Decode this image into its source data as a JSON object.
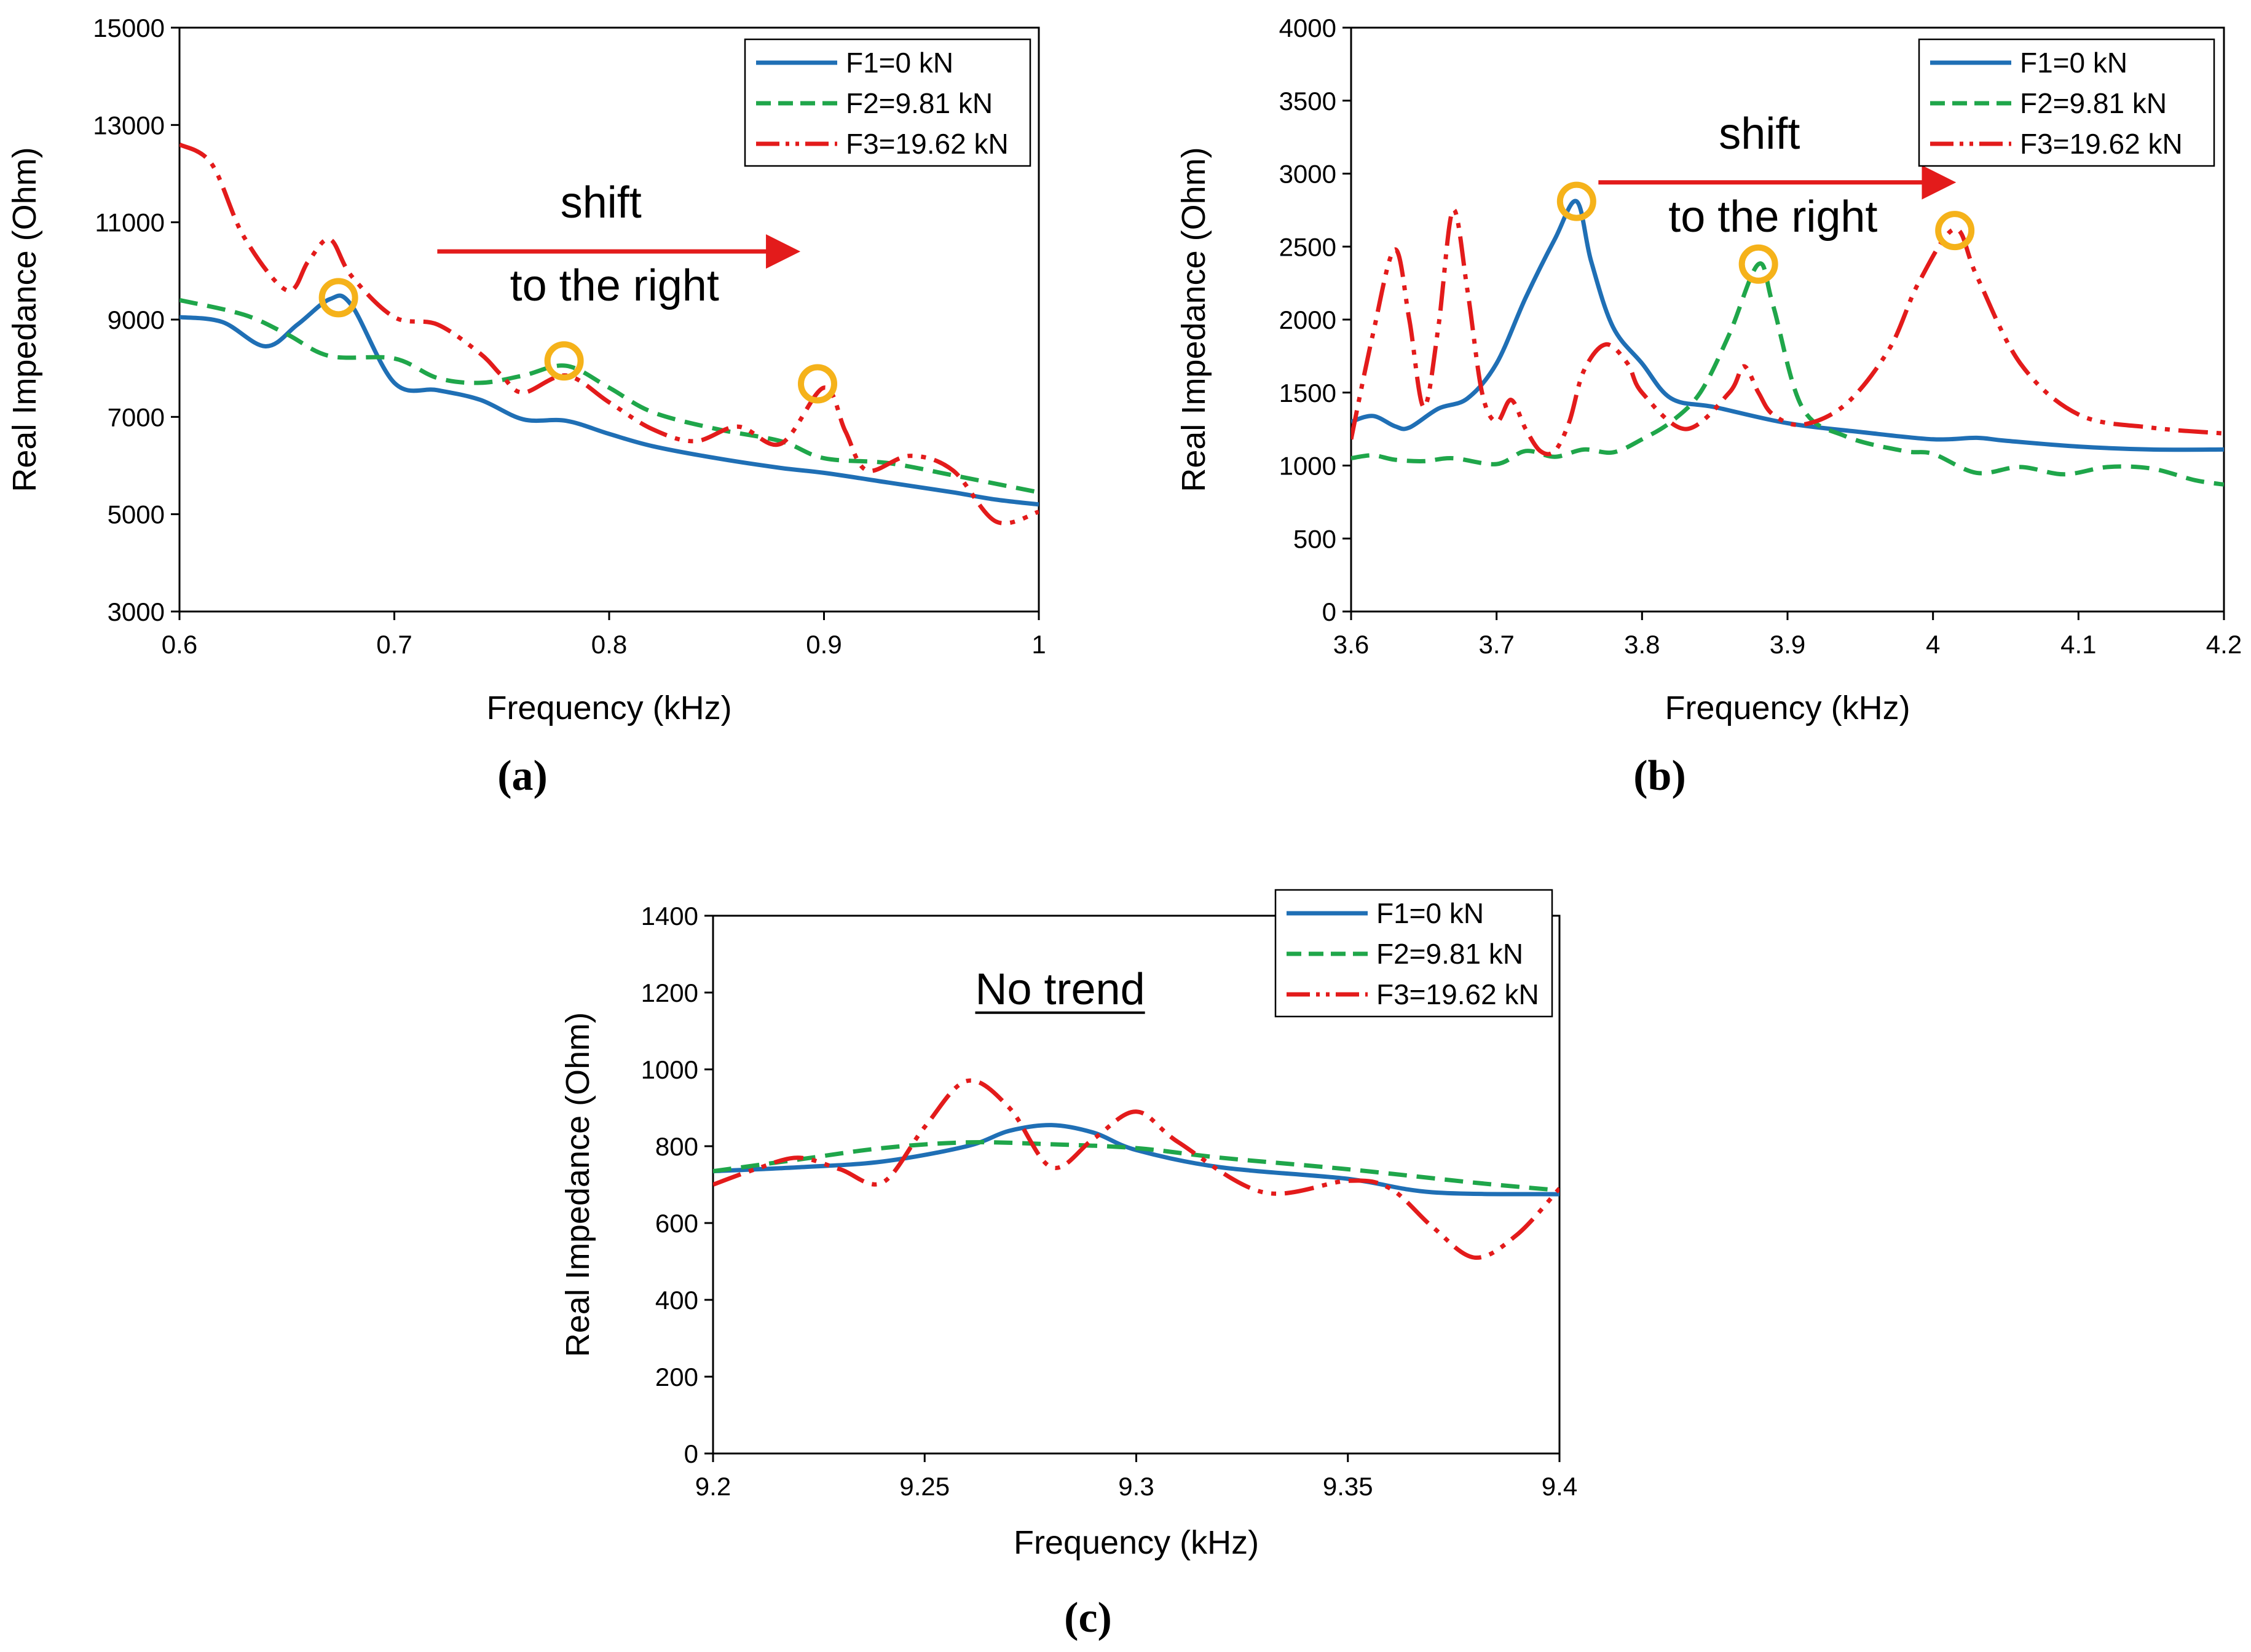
{
  "figure": {
    "colors": {
      "F1": "#1f6fb5",
      "F2": "#1fa64a",
      "F3": "#e31b1b",
      "marker": "#f5b21a",
      "arrow": "#e31b1b"
    }
  },
  "chart_data": [
    {
      "type": "line",
      "panel_label": "(a)",
      "xlabel": "Frequency (kHz)",
      "ylabel": "Real Impedance (Ohm)",
      "xlim": [
        0.6,
        1.0
      ],
      "ylim": [
        3000,
        15000
      ],
      "xticks": [
        0.6,
        0.7,
        0.8,
        0.9,
        1.0
      ],
      "xtick_labels": [
        "0.6",
        "0.7",
        "0.8",
        "0.9",
        "1"
      ],
      "yticks": [
        3000,
        5000,
        7000,
        9000,
        11000,
        13000,
        15000
      ],
      "ytick_labels": [
        "3000",
        "5000",
        "7000",
        "9000",
        "11000",
        "13000",
        "15000"
      ],
      "legend_position": "top-right",
      "annotation": {
        "line1": "shift",
        "line2": "to the right",
        "arrow_from": [
          0.72,
          10400
        ],
        "arrow_to": [
          0.885,
          10400
        ]
      },
      "markers": [
        {
          "x": 0.674,
          "y": 9450
        },
        {
          "x": 0.779,
          "y": 8150
        },
        {
          "x": 0.897,
          "y": 7680
        }
      ],
      "series": [
        {
          "name": "F1=0 kN",
          "style": "solid",
          "x": [
            0.6,
            0.62,
            0.64,
            0.655,
            0.67,
            0.68,
            0.7,
            0.72,
            0.74,
            0.76,
            0.78,
            0.8,
            0.82,
            0.85,
            0.88,
            0.9,
            0.93,
            0.96,
            0.98,
            1.0
          ],
          "y": [
            9050,
            8950,
            8450,
            8900,
            9420,
            9300,
            7700,
            7550,
            7350,
            6950,
            6920,
            6650,
            6400,
            6150,
            5950,
            5850,
            5650,
            5450,
            5300,
            5200
          ]
        },
        {
          "name": "F2=9.81 kN",
          "style": "dashed",
          "x": [
            0.6,
            0.63,
            0.65,
            0.67,
            0.7,
            0.72,
            0.74,
            0.76,
            0.78,
            0.8,
            0.82,
            0.85,
            0.88,
            0.9,
            0.93,
            0.96,
            1.0
          ],
          "y": [
            9400,
            9100,
            8700,
            8250,
            8200,
            7800,
            7700,
            7850,
            8050,
            7600,
            7100,
            6750,
            6500,
            6150,
            6050,
            5800,
            5450
          ]
        },
        {
          "name": "F3=19.62 kN",
          "style": "dashdotdot",
          "x": [
            0.6,
            0.615,
            0.63,
            0.65,
            0.66,
            0.67,
            0.68,
            0.7,
            0.72,
            0.74,
            0.75,
            0.76,
            0.78,
            0.8,
            0.82,
            0.84,
            0.86,
            0.88,
            0.9,
            0.91,
            0.92,
            0.94,
            0.96,
            0.98,
            1.0
          ],
          "y": [
            12600,
            12200,
            10700,
            9600,
            10200,
            10650,
            9900,
            9050,
            8900,
            8300,
            7850,
            7500,
            7850,
            7300,
            6750,
            6500,
            6800,
            6450,
            7600,
            6700,
            5900,
            6200,
            5900,
            4850,
            5050
          ]
        }
      ]
    },
    {
      "type": "line",
      "panel_label": "(b)",
      "xlabel": "Frequency (kHz)",
      "ylabel": "Real Impedance (Ohm)",
      "xlim": [
        3.6,
        4.2
      ],
      "ylim": [
        0,
        4000
      ],
      "xticks": [
        3.6,
        3.7,
        3.8,
        3.9,
        4.0,
        4.1,
        4.2
      ],
      "xtick_labels": [
        "3.6",
        "3.7",
        "3.8",
        "3.9",
        "4",
        "4.1",
        "4.2"
      ],
      "yticks": [
        0,
        500,
        1000,
        1500,
        2000,
        2500,
        3000,
        3500,
        4000
      ],
      "ytick_labels": [
        "0",
        "500",
        "1000",
        "1500",
        "2000",
        "2500",
        "3000",
        "3500",
        "4000"
      ],
      "legend_position": "top-right",
      "annotation": {
        "line1": "shift",
        "line2": "to the right",
        "arrow_from": [
          3.77,
          2940
        ],
        "arrow_to": [
          4.01,
          2940
        ]
      },
      "markers": [
        {
          "x": 3.755,
          "y": 2810
        },
        {
          "x": 3.88,
          "y": 2380
        },
        {
          "x": 4.015,
          "y": 2610
        }
      ],
      "series": [
        {
          "name": "F1=0 kN",
          "style": "solid",
          "x": [
            3.6,
            3.615,
            3.63,
            3.64,
            3.66,
            3.68,
            3.7,
            3.72,
            3.74,
            3.755,
            3.765,
            3.78,
            3.8,
            3.82,
            3.85,
            3.9,
            3.95,
            4.0,
            4.03,
            4.05,
            4.1,
            4.15,
            4.2
          ],
          "y": [
            1300,
            1340,
            1270,
            1260,
            1390,
            1460,
            1700,
            2150,
            2550,
            2810,
            2400,
            1950,
            1700,
            1460,
            1400,
            1290,
            1230,
            1180,
            1190,
            1170,
            1130,
            1110,
            1110
          ]
        },
        {
          "name": "F2=9.81 kN",
          "style": "dashed",
          "x": [
            3.6,
            3.615,
            3.63,
            3.65,
            3.67,
            3.7,
            3.72,
            3.74,
            3.76,
            3.78,
            3.8,
            3.82,
            3.84,
            3.86,
            3.88,
            3.89,
            3.91,
            3.94,
            3.98,
            4.0,
            4.03,
            4.06,
            4.09,
            4.12,
            4.15,
            4.18,
            4.2
          ],
          "y": [
            1050,
            1070,
            1040,
            1030,
            1050,
            1010,
            1100,
            1060,
            1110,
            1090,
            1180,
            1300,
            1500,
            1900,
            2380,
            2100,
            1400,
            1200,
            1100,
            1080,
            950,
            990,
            940,
            990,
            980,
            900,
            870
          ]
        },
        {
          "name": "F3=19.62 kN",
          "style": "dashdotdot",
          "x": [
            3.6,
            3.615,
            3.63,
            3.64,
            3.65,
            3.66,
            3.67,
            3.68,
            3.69,
            3.7,
            3.71,
            3.72,
            3.73,
            3.74,
            3.75,
            3.76,
            3.775,
            3.79,
            3.8,
            3.83,
            3.86,
            3.87,
            3.88,
            3.89,
            3.91,
            3.94,
            3.97,
            3.99,
            4.015,
            4.03,
            4.06,
            4.1,
            4.15,
            4.2
          ],
          "y": [
            1180,
            1900,
            2480,
            2000,
            1400,
            1950,
            2750,
            2200,
            1500,
            1300,
            1450,
            1250,
            1100,
            1100,
            1300,
            1650,
            1830,
            1700,
            1500,
            1250,
            1500,
            1680,
            1500,
            1350,
            1280,
            1420,
            1800,
            2250,
            2620,
            2300,
            1700,
            1350,
            1260,
            1220
          ]
        }
      ]
    },
    {
      "type": "line",
      "panel_label": "(c)",
      "xlabel": "Frequency (kHz)",
      "ylabel": "Real Impedance (Ohm)",
      "xlim": [
        9.2,
        9.4
      ],
      "ylim": [
        0,
        1400
      ],
      "xticks": [
        9.2,
        9.25,
        9.3,
        9.35,
        9.4
      ],
      "xtick_labels": [
        "9.2",
        "9.25",
        "9.3",
        "9.35",
        "9.4"
      ],
      "yticks": [
        0,
        200,
        400,
        600,
        800,
        1000,
        1200,
        1400
      ],
      "ytick_labels": [
        "0",
        "200",
        "400",
        "600",
        "800",
        "1000",
        "1200",
        "1400"
      ],
      "legend_position": "top-right",
      "annotation": {
        "text": "No trend",
        "anchor": [
          9.282,
          1170
        ]
      },
      "series": [
        {
          "name": "F1=0 kN",
          "style": "solid",
          "x": [
            9.2,
            9.22,
            9.24,
            9.26,
            9.27,
            9.28,
            9.29,
            9.3,
            9.32,
            9.35,
            9.37,
            9.4
          ],
          "y": [
            735,
            745,
            760,
            800,
            840,
            855,
            835,
            790,
            745,
            715,
            680,
            675
          ]
        },
        {
          "name": "F2=9.81 kN",
          "style": "dashed",
          "x": [
            9.2,
            9.22,
            9.24,
            9.26,
            9.28,
            9.3,
            9.32,
            9.35,
            9.38,
            9.4
          ],
          "y": [
            735,
            765,
            795,
            810,
            805,
            795,
            770,
            740,
            705,
            685
          ]
        },
        {
          "name": "F3=19.62 kN",
          "style": "dashdotdot",
          "x": [
            9.2,
            9.21,
            9.22,
            9.23,
            9.24,
            9.25,
            9.26,
            9.27,
            9.28,
            9.29,
            9.3,
            9.31,
            9.33,
            9.35,
            9.36,
            9.37,
            9.38,
            9.39,
            9.4
          ],
          "y": [
            700,
            740,
            770,
            740,
            705,
            850,
            970,
            900,
            745,
            820,
            890,
            810,
            680,
            710,
            690,
            590,
            510,
            570,
            690
          ]
        }
      ]
    }
  ]
}
